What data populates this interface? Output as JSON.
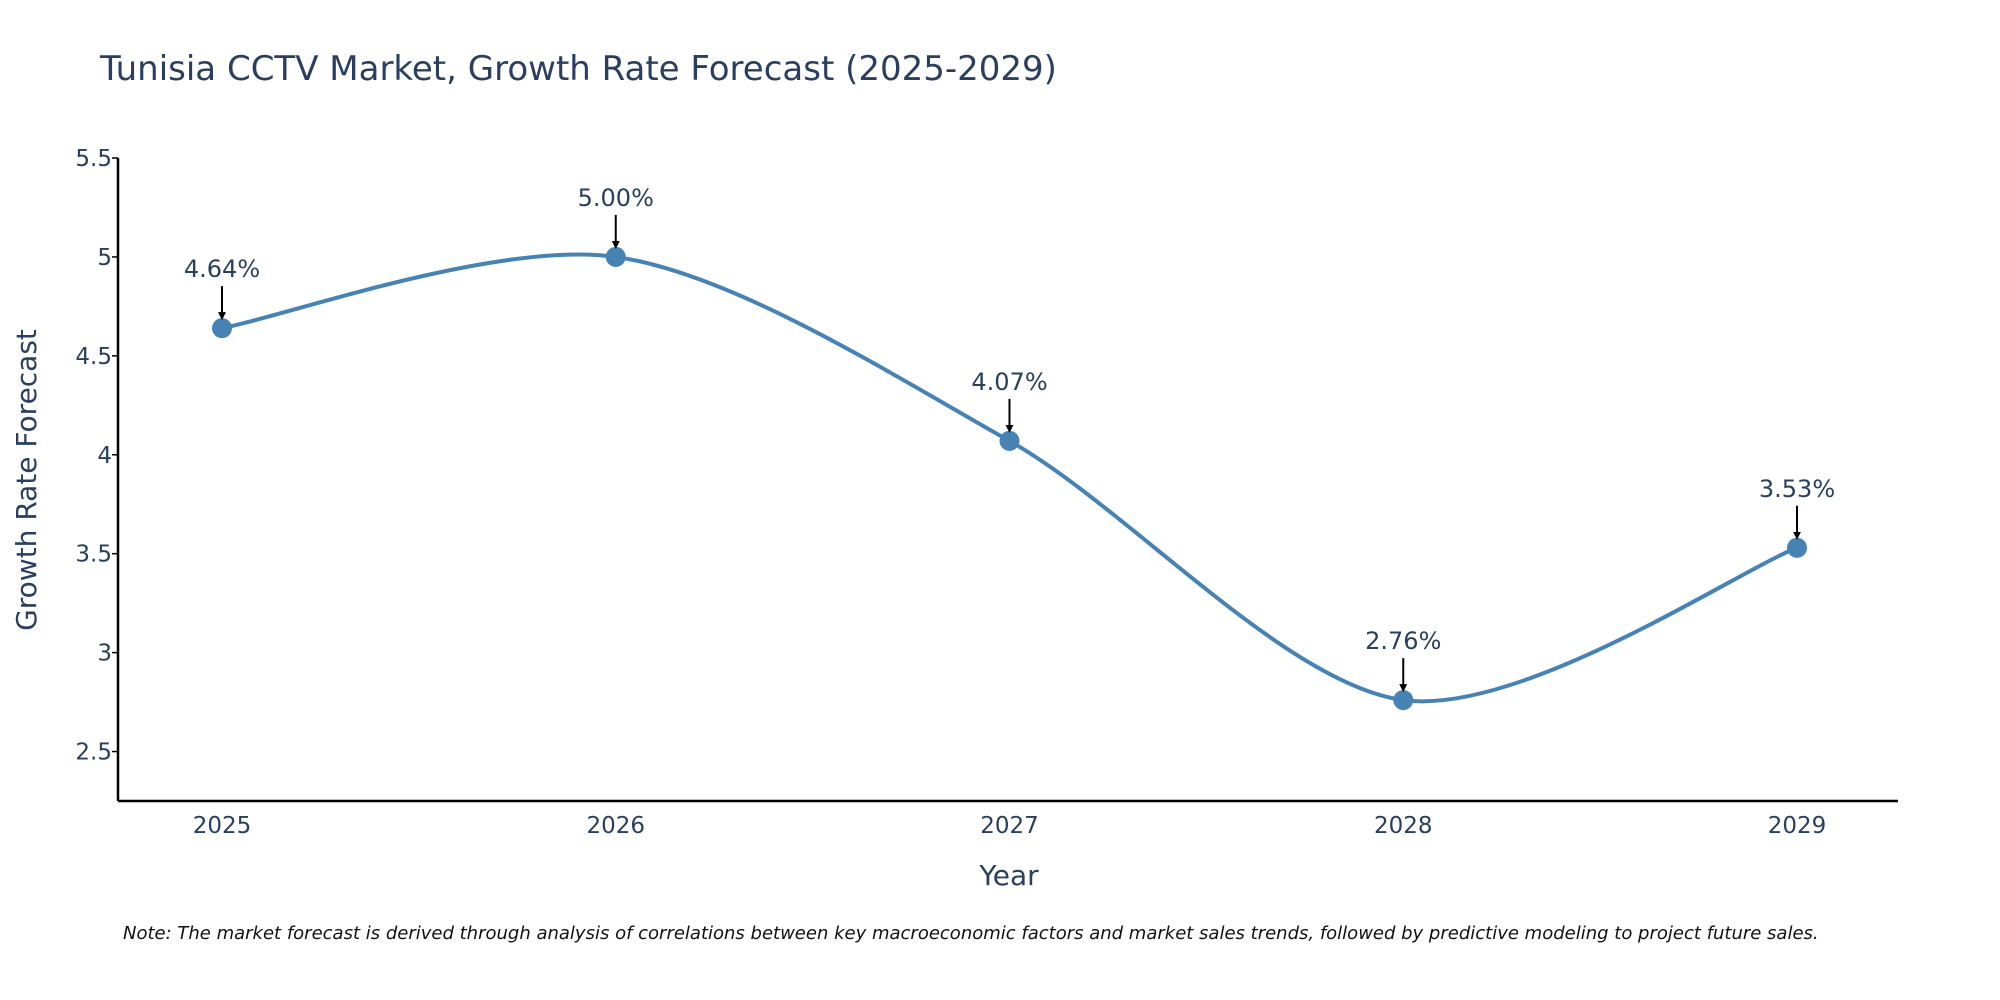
{
  "chart_data": {
    "type": "line",
    "title": "Tunisia CCTV Market, Growth Rate Forecast (2025-2029)",
    "xlabel": "Year",
    "ylabel": "Growth Rate Forecast",
    "categories": [
      "2025",
      "2026",
      "2027",
      "2028",
      "2029"
    ],
    "series": [
      {
        "name": "Growth Rate Forecast",
        "values": [
          4.64,
          5.0,
          4.07,
          2.76,
          3.53
        ]
      }
    ],
    "data_labels": [
      "4.64%",
      "5.00%",
      "4.07%",
      "2.76%",
      "3.53%"
    ],
    "yticks": [
      2.5,
      3,
      3.5,
      4,
      4.5,
      5,
      5.5
    ],
    "ytick_labels": [
      "2.5",
      "3",
      "3.5",
      "4",
      "4.5",
      "5",
      "5.5"
    ],
    "ylim": [
      2.25,
      5.5
    ],
    "grid": false,
    "line_color": "#4682b4",
    "note": "Note: The market forecast is derived through analysis of correlations between key macroeconomic factors and market sales trends, followed by predictive modeling to project future sales."
  }
}
